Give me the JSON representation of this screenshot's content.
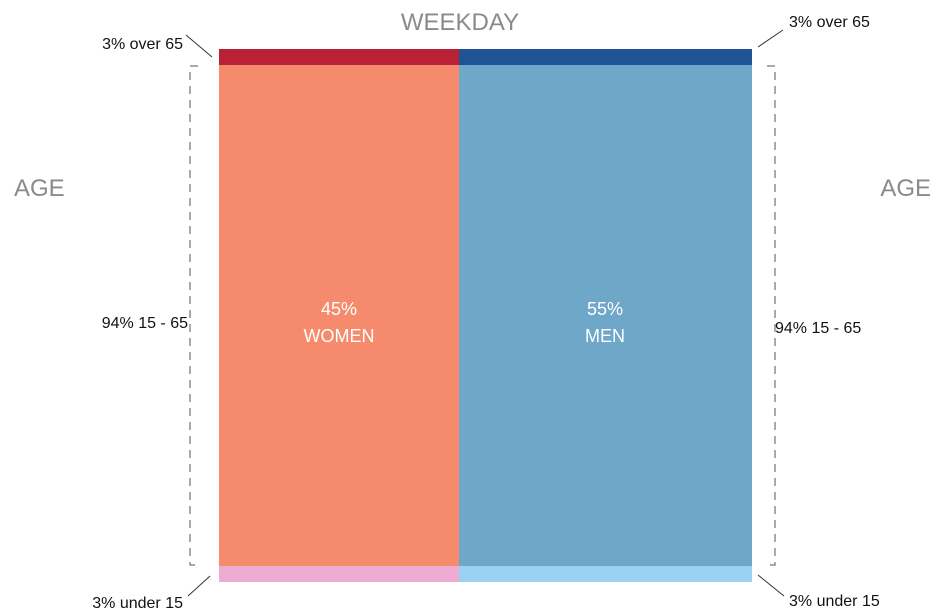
{
  "chart_data": {
    "type": "mosaic",
    "title": "WEEKDAY",
    "left_axis_label": "AGE",
    "right_axis_label": "AGE",
    "columns": [
      {
        "key": "women",
        "percent_label": "45%",
        "name": "WOMEN",
        "share": 0.45,
        "segments": [
          {
            "group": "over 65",
            "share": 0.03,
            "color": "#b82234"
          },
          {
            "group": "15 - 65",
            "share": 0.94,
            "color": "#f58b6c"
          },
          {
            "group": "under 15",
            "share": 0.03,
            "color": "#efacd2"
          }
        ]
      },
      {
        "key": "men",
        "percent_label": "55%",
        "name": "MEN",
        "share": 0.55,
        "segments": [
          {
            "group": "over 65",
            "share": 0.03,
            "color": "#1e5494"
          },
          {
            "group": "15 - 65",
            "share": 0.94,
            "color": "#6fa7c8"
          },
          {
            "group": "under 15",
            "share": 0.03,
            "color": "#9bd2f2"
          }
        ]
      }
    ],
    "annotations": {
      "left_top": "3% over 65",
      "left_middle": "94% 15 - 65",
      "left_bottom": "3% under 15",
      "right_top": "3% over 65",
      "right_middle": "94% 15 - 65",
      "right_bottom": "3% under 15"
    }
  }
}
